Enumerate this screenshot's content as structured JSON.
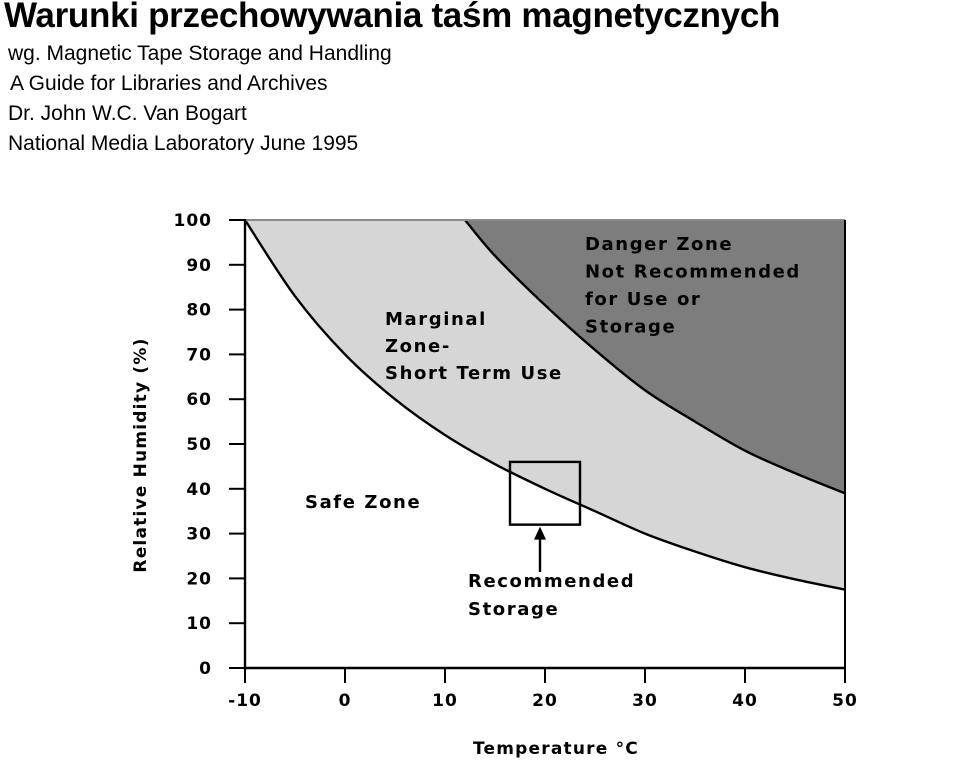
{
  "header": {
    "title": "Warunki przechowywania taśm magnetycznych",
    "source_lines": [
      "wg. Magnetic Tape Storage and Handling",
      "A Guide for Libraries and Archives",
      "Dr. John W.C. Van Bogart",
      "National Media Laboratory June 1995"
    ]
  },
  "chart_data": {
    "type": "area",
    "xlabel": "Temperature °C",
    "ylabel": "Relative Humidity (%)",
    "xlim": [
      -10,
      50
    ],
    "ylim": [
      0,
      100
    ],
    "x_ticks": [
      "-10",
      "0",
      "10",
      "20",
      "30",
      "40",
      "50"
    ],
    "y_ticks": [
      "0",
      "10",
      "20",
      "30",
      "40",
      "50",
      "60",
      "70",
      "80",
      "90",
      "100"
    ],
    "grid": false,
    "boundaries": [
      {
        "id": "safe_upper",
        "x": [
          -10,
          -5,
          0,
          5,
          10,
          15,
          20,
          25,
          30,
          35,
          40,
          45,
          50
        ],
        "y": [
          100,
          83,
          70,
          60,
          52,
          45.5,
          40,
          35,
          30,
          26,
          22.5,
          19.8,
          17.5
        ]
      },
      {
        "id": "marginal_upper",
        "x": [
          12,
          15,
          20,
          25,
          30,
          35,
          40,
          45,
          50
        ],
        "y": [
          100,
          92,
          81,
          71,
          62,
          55,
          48.5,
          43.5,
          39
        ]
      }
    ],
    "zones": [
      {
        "id": "safe",
        "lines": [
          "Safe Zone"
        ],
        "color": "#ffffff"
      },
      {
        "id": "marginal",
        "lines": [
          "Marginal",
          "Zone-",
          "Short Term Use"
        ],
        "color": "#d6d6d6"
      },
      {
        "id": "danger",
        "lines": [
          "Danger Zone",
          "Not Recommended",
          "for Use or",
          "Storage"
        ],
        "color": "#7d7d7d"
      }
    ],
    "recommended_storage": {
      "lines": [
        "Recommended",
        "Storage"
      ],
      "x_range": [
        16.5,
        23.5
      ],
      "y_range": [
        32,
        46
      ]
    }
  }
}
